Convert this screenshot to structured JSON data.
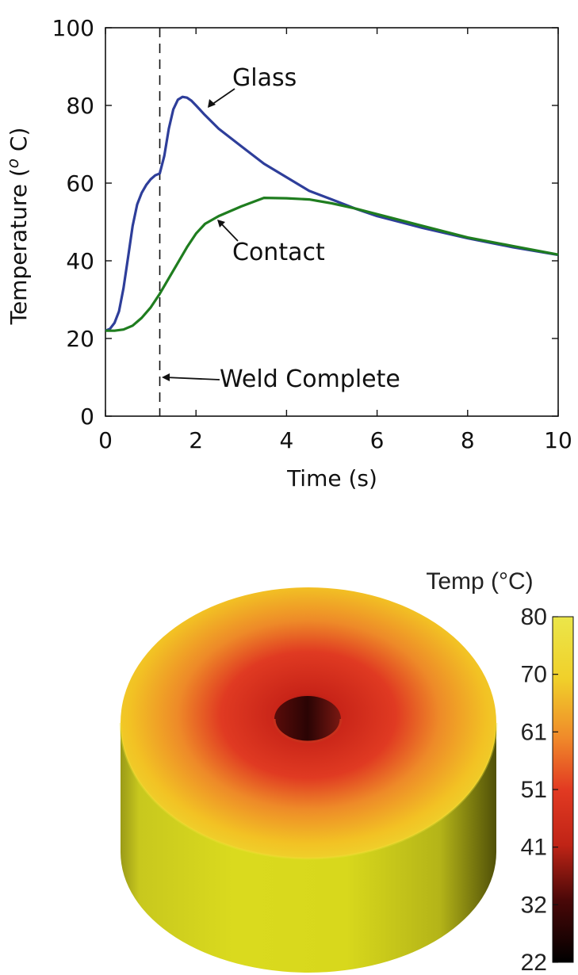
{
  "chart_data": [
    {
      "type": "line",
      "xlabel": "Time (s)",
      "ylabel": "Temperature (°C)",
      "xlim": [
        0,
        10
      ],
      "ylim": [
        0,
        100
      ],
      "xticks": [
        0,
        2,
        4,
        6,
        8,
        10
      ],
      "yticks": [
        0,
        20,
        40,
        60,
        80,
        100
      ],
      "grid": false,
      "series": [
        {
          "name": "Glass",
          "color": "#2e3e9a",
          "x": [
            0,
            0.1,
            0.2,
            0.3,
            0.4,
            0.5,
            0.6,
            0.7,
            0.8,
            0.9,
            1.0,
            1.1,
            1.2,
            1.3,
            1.4,
            1.5,
            1.6,
            1.7,
            1.8,
            1.9,
            2.0,
            2.2,
            2.5,
            3.0,
            3.5,
            4.0,
            4.5,
            5.0,
            5.5,
            6.0,
            7.0,
            8.0,
            9.0,
            10.0
          ],
          "y": [
            22,
            22.5,
            24,
            27,
            33,
            41,
            49,
            54.5,
            57.5,
            59.5,
            61,
            62,
            62.5,
            67,
            74,
            79,
            81.5,
            82.2,
            82,
            81.2,
            80,
            77.5,
            74,
            69.5,
            65,
            61.5,
            58,
            55.8,
            53.5,
            51.5,
            48.5,
            45.8,
            43.5,
            41.5
          ]
        },
        {
          "name": "Contact",
          "color": "#1f7d1f",
          "x": [
            0,
            0.2,
            0.4,
            0.6,
            0.8,
            1.0,
            1.2,
            1.4,
            1.6,
            1.8,
            2.0,
            2.2,
            2.5,
            3.0,
            3.5,
            4.0,
            4.5,
            5.0,
            5.5,
            6.0,
            7.0,
            8.0,
            9.0,
            10.0
          ],
          "y": [
            22,
            22,
            22.3,
            23.3,
            25.3,
            28,
            31.5,
            35.5,
            39.5,
            43.5,
            47,
            49.5,
            51.5,
            54,
            56.2,
            56.1,
            55.8,
            54.8,
            53.5,
            52,
            49,
            46,
            43.8,
            41.6
          ]
        }
      ],
      "annotations": [
        {
          "text": "Glass",
          "x": 1.9,
          "y": 82
        },
        {
          "text": "Contact",
          "x": 2.4,
          "y": 50.5
        },
        {
          "text": "Weld Complete",
          "x": 1.2,
          "y": 10
        }
      ],
      "vline": {
        "x": 1.2,
        "style": "dashed"
      }
    },
    {
      "type": "heatmap",
      "colorbar_title": "Temp (°C)",
      "colorbar_ticks": [
        "80",
        "70",
        "61",
        "51",
        "41",
        "32",
        "22"
      ],
      "colorbar_range": [
        22,
        80
      ]
    }
  ]
}
